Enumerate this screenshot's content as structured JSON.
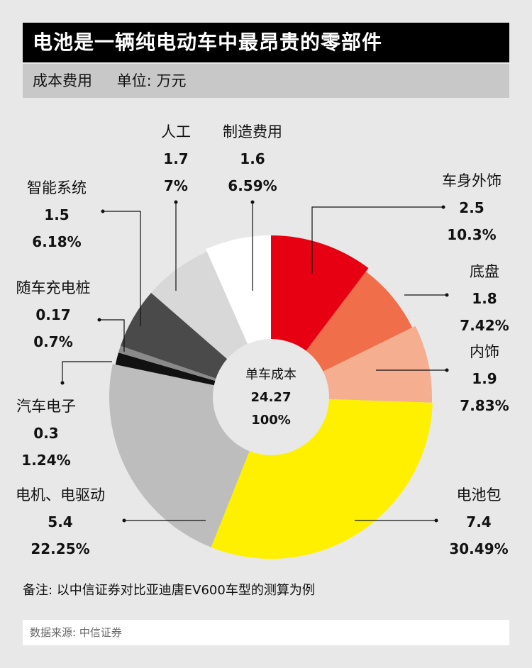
{
  "header": {
    "title": "电池是一辆纯电动车中最昂贵的零部件",
    "subtitle": "成本费用",
    "unit": "单位: 万元"
  },
  "chart_data": {
    "type": "pie",
    "style": "donut",
    "center": {
      "label": "单车成本",
      "value": "24.27",
      "percent": "100%"
    },
    "slices": [
      {
        "name": "车身外饰",
        "value": "2.5",
        "percent": "10.3%",
        "color": "#e60012"
      },
      {
        "name": "底盘",
        "value": "1.8",
        "percent": "7.42%",
        "color": "#f06e4a"
      },
      {
        "name": "内饰",
        "value": "1.9",
        "percent": "7.83%",
        "color": "#f5ae90"
      },
      {
        "name": "电池包",
        "value": "7.4",
        "percent": "30.49%",
        "color": "#fff000"
      },
      {
        "name": "电机、电驱动",
        "value": "5.4",
        "percent": "22.25%",
        "color": "#bdbdbd"
      },
      {
        "name": "汽车电子",
        "value": "0.3",
        "percent": "1.24%",
        "color": "#111111"
      },
      {
        "name": "随车充电桩",
        "value": "0.17",
        "percent": "0.7%",
        "color": "#8a8a8a"
      },
      {
        "name": "智能系统",
        "value": "1.5",
        "percent": "6.18%",
        "color": "#4a4a4a"
      },
      {
        "name": "人工",
        "value": "1.7",
        "percent": "7%",
        "color": "#d8d8d8"
      },
      {
        "name": "制造费用",
        "value": "1.6",
        "percent": "6.59%",
        "color": "#ffffff"
      }
    ]
  },
  "footer": {
    "note": "备注: 以中信证券对比亚迪唐EV600车型的测算为例",
    "source": "数据来源: 中信证券"
  }
}
